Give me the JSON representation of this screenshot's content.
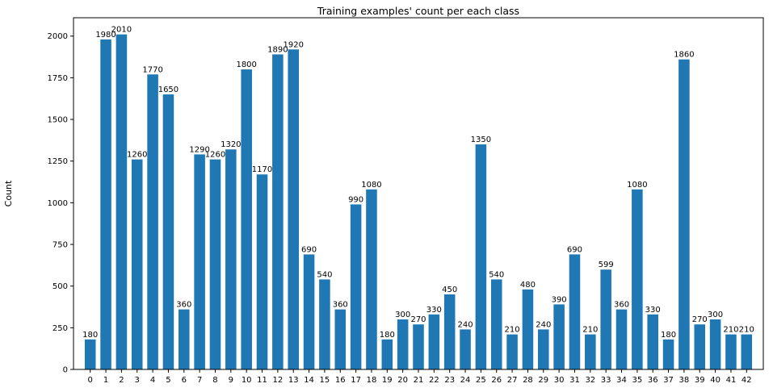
{
  "chart_data": {
    "type": "bar",
    "title": "Training examples' count per each class",
    "xlabel": "",
    "ylabel": "Count",
    "categories": [
      "0",
      "1",
      "2",
      "3",
      "4",
      "5",
      "6",
      "7",
      "8",
      "9",
      "10",
      "11",
      "12",
      "13",
      "14",
      "15",
      "16",
      "17",
      "18",
      "19",
      "20",
      "21",
      "22",
      "23",
      "24",
      "25",
      "26",
      "27",
      "28",
      "29",
      "30",
      "31",
      "32",
      "33",
      "34",
      "35",
      "36",
      "37",
      "38",
      "39",
      "40",
      "41",
      "42"
    ],
    "values": [
      180,
      1980,
      2010,
      1260,
      1770,
      1650,
      360,
      1290,
      1260,
      1320,
      1800,
      1170,
      1890,
      1920,
      690,
      540,
      360,
      990,
      1080,
      180,
      300,
      270,
      330,
      450,
      240,
      1350,
      540,
      210,
      480,
      240,
      390,
      690,
      210,
      599,
      360,
      1080,
      330,
      180,
      1860,
      270,
      300,
      210,
      210
    ],
    "ylim": [
      0,
      2110
    ],
    "yticks": [
      0,
      250,
      500,
      750,
      1000,
      1250,
      1500,
      1750,
      2000
    ],
    "bar_color": "#1f77b4",
    "grid": false,
    "legend": "none"
  }
}
